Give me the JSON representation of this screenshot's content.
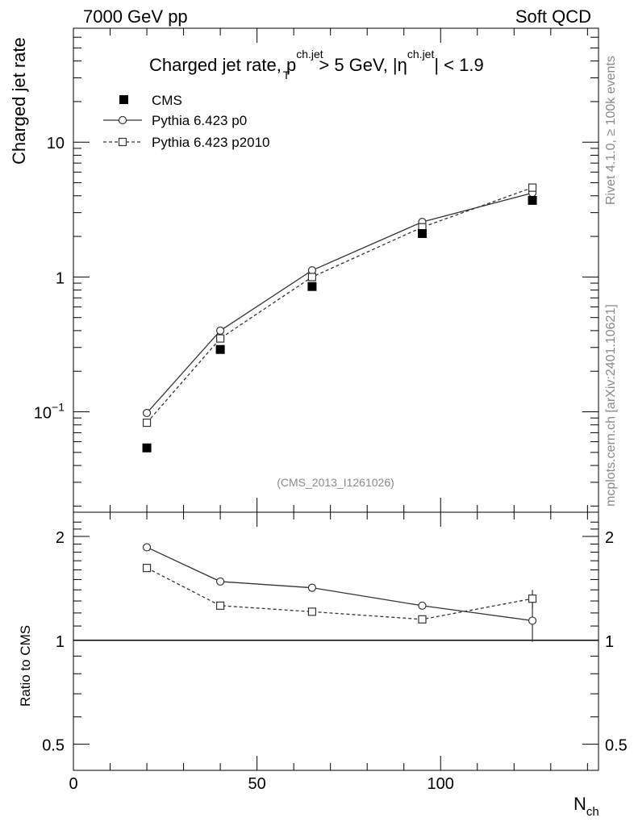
{
  "header": {
    "left": "7000 GeV pp",
    "right": "Soft QCD"
  },
  "side_labels": {
    "rivet": "Rivet 4.1.0, ≥ 100k events",
    "mcplots": "mcplots.cern.ch [arXiv:2401.10621]"
  },
  "chart_data": [
    {
      "type": "scatter",
      "title": {
        "prefix": "Charged jet rate, p",
        "pt_sup": "ch.jet",
        "pt_sub": "T",
        "middle": " > 5 GeV,  |",
        "eta": "η",
        "eta_sup": "ch.jet",
        "suffix": "| < 1.9"
      },
      "ylabel": "Charged jet rate",
      "yscale": "log",
      "ylim": [
        0.018,
        70
      ],
      "xlim": [
        0,
        143
      ],
      "y_ticks": [
        {
          "value": 0.1,
          "base": "10",
          "exp": "−1"
        },
        {
          "value": 1,
          "base": "1",
          "exp": ""
        },
        {
          "value": 10,
          "base": "10",
          "exp": ""
        }
      ],
      "annotation": "(CMS_2013_I1261026)",
      "legend": {
        "position": "top-left",
        "entries": [
          "CMS",
          "Pythia 6.423 p0",
          "Pythia 6.423 p2010"
        ]
      },
      "series": [
        {
          "name": "CMS",
          "marker": "filled-square",
          "line": "none",
          "x": [
            20,
            40,
            65,
            95,
            125
          ],
          "y": [
            0.054,
            0.29,
            0.85,
            2.1,
            3.7
          ]
        },
        {
          "name": "Pythia 6.423 p0",
          "marker": "open-circle",
          "line": "solid",
          "x": [
            20,
            40,
            65,
            95,
            125
          ],
          "y": [
            0.098,
            0.4,
            1.12,
            2.56,
            4.2
          ]
        },
        {
          "name": "Pythia 6.423 p2010",
          "marker": "open-square",
          "line": "dashed",
          "x": [
            20,
            40,
            65,
            95,
            125
          ],
          "y": [
            0.083,
            0.35,
            1.0,
            2.34,
            4.6
          ]
        }
      ]
    },
    {
      "type": "line",
      "ylabel": "Ratio to CMS",
      "yscale": "log",
      "ylim": [
        0.42,
        2.35
      ],
      "xlim": [
        0,
        143
      ],
      "xlabel": {
        "base": "N",
        "sub": "ch"
      },
      "x_ticks": [
        {
          "value": 0,
          "label": "0"
        },
        {
          "value": 50,
          "label": "50"
        },
        {
          "value": 100,
          "label": "100"
        }
      ],
      "y_ticks": [
        {
          "value": 0.5,
          "label": "0.5"
        },
        {
          "value": 1,
          "label": "1"
        },
        {
          "value": 2,
          "label": "2"
        }
      ],
      "reference_line": 1,
      "series": [
        {
          "name": "Pythia 6.423 p0",
          "marker": "open-circle",
          "line": "solid",
          "x": [
            20,
            40,
            65,
            95,
            125
          ],
          "y": [
            1.86,
            1.48,
            1.42,
            1.26,
            1.14
          ],
          "yerr": [
            0.03,
            0.01,
            0.01,
            0.03,
            0.15
          ]
        },
        {
          "name": "Pythia 6.423 p2010",
          "marker": "open-square",
          "line": "dashed",
          "x": [
            20,
            40,
            65,
            95,
            125
          ],
          "y": [
            1.62,
            1.26,
            1.21,
            1.15,
            1.32
          ],
          "yerr": [
            0.02,
            0.01,
            0.01,
            0.02,
            0.08
          ]
        }
      ]
    }
  ]
}
